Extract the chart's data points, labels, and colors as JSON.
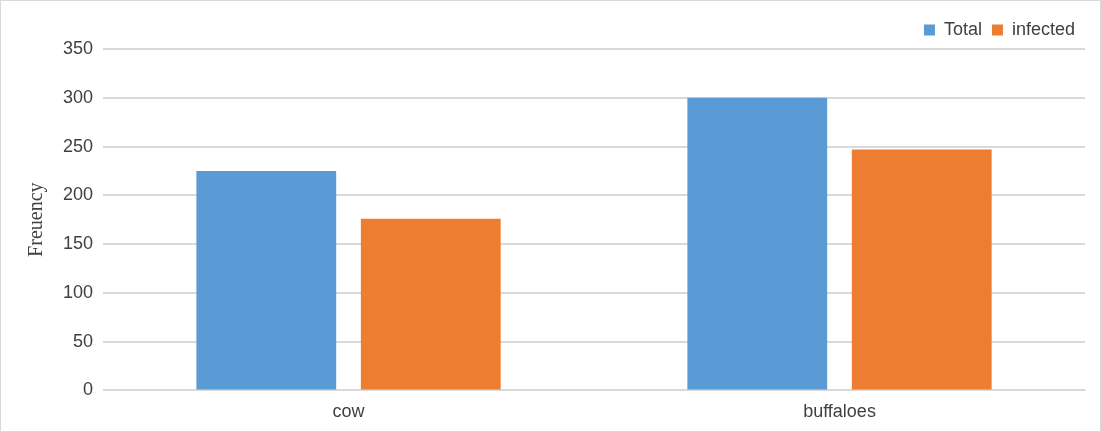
{
  "chart_data": {
    "type": "bar",
    "ylabel": "Freuency",
    "categories": [
      "cow",
      "buffaloes"
    ],
    "series": [
      {
        "name": "Total",
        "color": "#5b9bd5",
        "values": [
          225,
          300
        ]
      },
      {
        "name": "infected",
        "color": "#ed7d31",
        "values": [
          176,
          247
        ]
      }
    ],
    "ylim": [
      0,
      350
    ],
    "yticks": [
      0,
      50,
      100,
      150,
      200,
      250,
      300,
      350
    ],
    "grid": "y",
    "legend": "top right"
  }
}
